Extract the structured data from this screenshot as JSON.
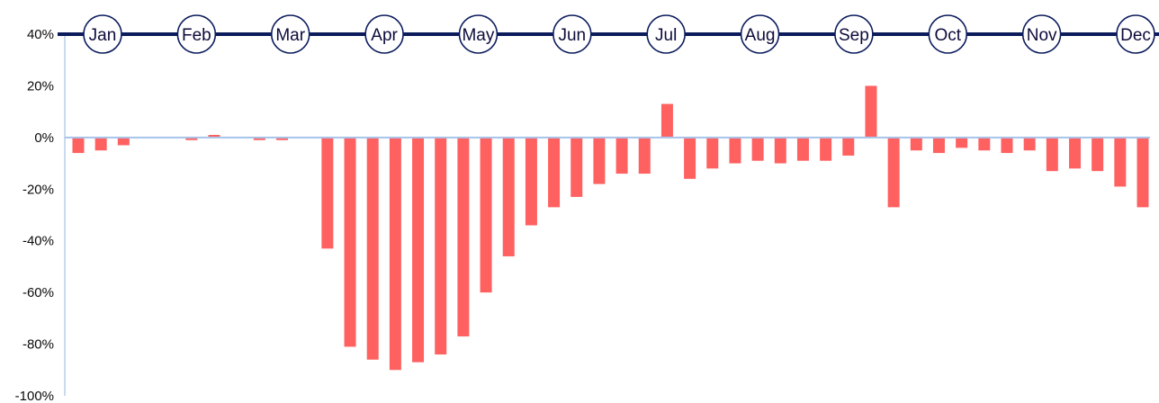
{
  "chart_data": {
    "type": "bar",
    "title": "",
    "xlabel": "",
    "ylabel": "",
    "ylim": [
      -100,
      40
    ],
    "y_ticks": [
      40,
      20,
      0,
      -20,
      -40,
      -60,
      -80,
      -100
    ],
    "y_tick_labels": [
      "40%",
      "20%",
      "0%",
      "-20%",
      "-40%",
      "-60%",
      "-80%",
      "-100%"
    ],
    "months": [
      "Jan",
      "Feb",
      "Mar",
      "Apr",
      "May",
      "Jun",
      "Jul",
      "Aug",
      "Sep",
      "Oct",
      "Nov",
      "Dec"
    ],
    "values": [
      -6,
      -5,
      -3,
      0,
      0,
      -1,
      1,
      0,
      -1,
      -1,
      0,
      -43,
      -81,
      -86,
      -90,
      -87,
      -84,
      -77,
      -60,
      -46,
      -34,
      -27,
      -23,
      -18,
      -14,
      -14,
      13,
      -16,
      -12,
      -10,
      -9,
      -10,
      -9,
      -9,
      -7,
      20,
      -27,
      -5,
      -6,
      -4,
      -5,
      -6,
      -5,
      -13,
      -12,
      -13,
      -19,
      -27
    ],
    "grid": false,
    "legend": "none"
  },
  "colors": {
    "bar": "#ff6161",
    "timeline": "#0b1b5c",
    "zero_line": "#a7c3ea",
    "axis": "#b9cdea",
    "month_circle_fill": "#ffffff"
  }
}
